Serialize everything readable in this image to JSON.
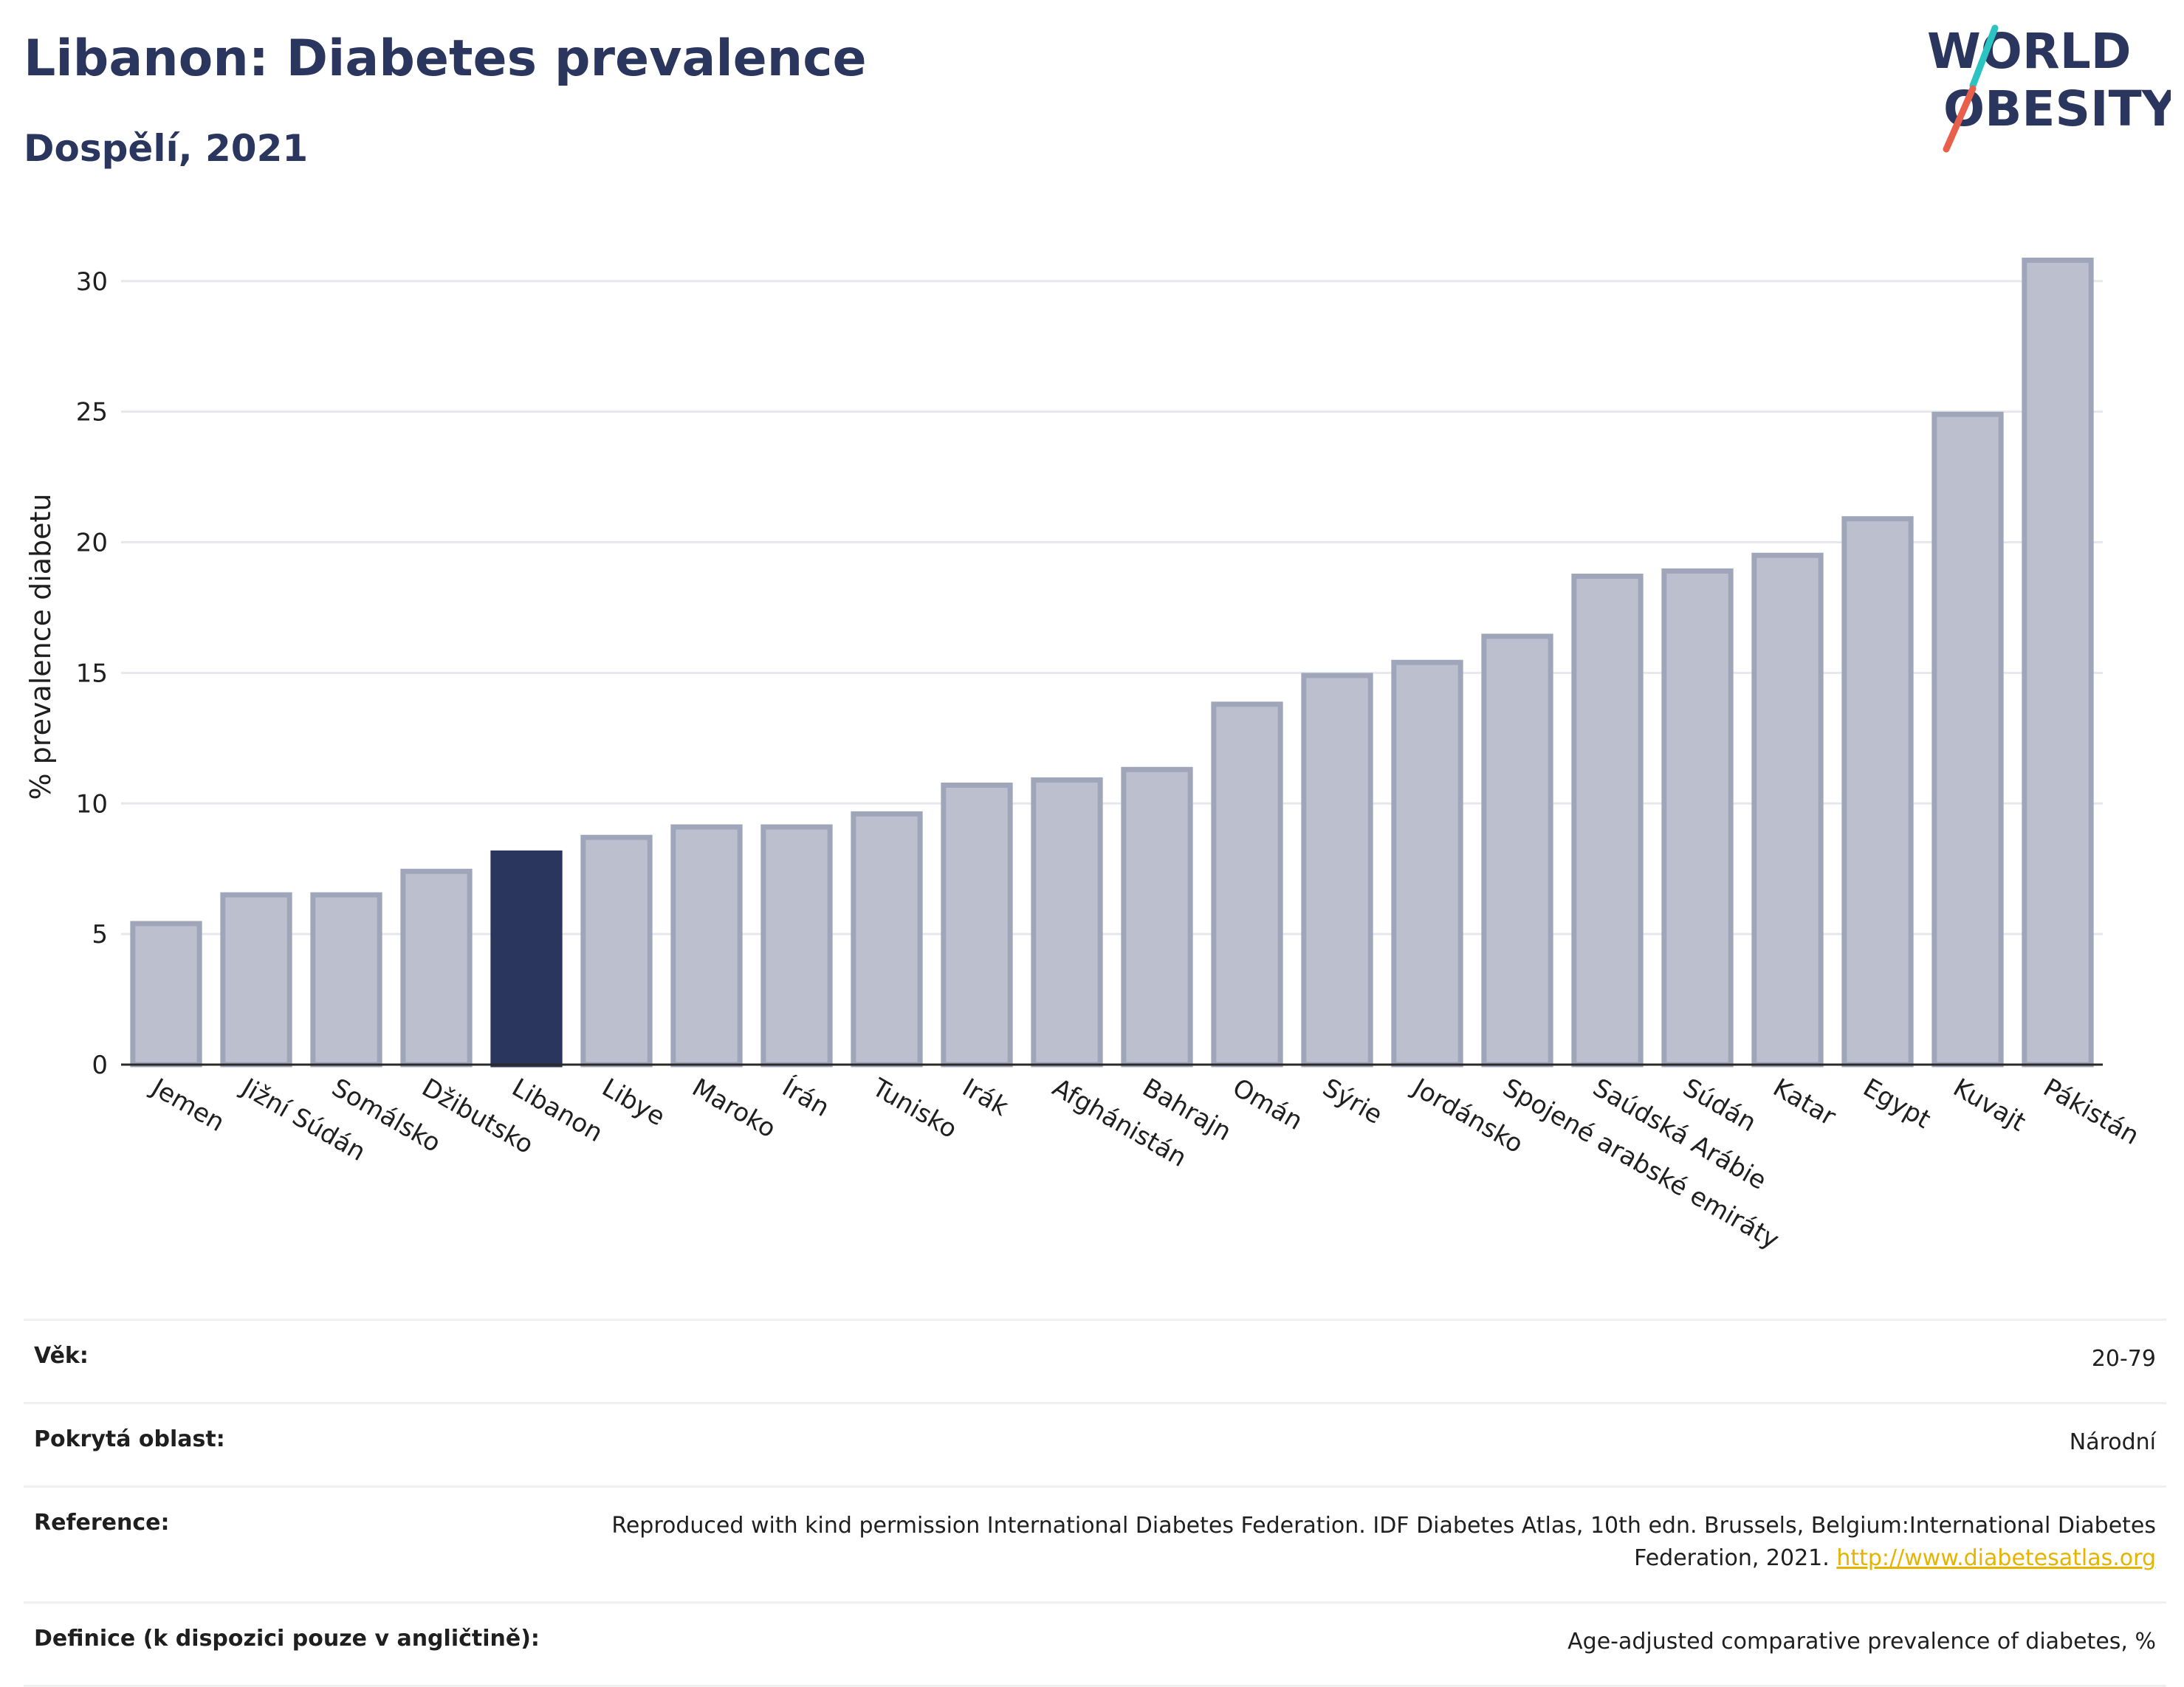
{
  "header": {
    "title": "Libanon: Diabetes prevalence",
    "subtitle": "Dospělí, 2021"
  },
  "logo": {
    "line1": "WORLD",
    "line2": "OBESITY",
    "slash_colors": [
      "#2cc3c3",
      "#e8604c"
    ]
  },
  "colors": {
    "bar_default": "#bcc0ce",
    "bar_border": "#a0a6ba",
    "bar_highlight": "#2b365f",
    "text_primary": "#2b365f",
    "link": "#e6b400"
  },
  "chart_data": {
    "type": "bar",
    "ylabel": "% prevalence diabetu",
    "ylim": [
      0,
      32
    ],
    "yticks": [
      0,
      5,
      10,
      15,
      20,
      25,
      30
    ],
    "grid": true,
    "highlight": "Libanon",
    "categories": [
      "Jemen",
      "Jižní Súdán",
      "Somálsko",
      "Džibutsko",
      "Libanon",
      "Libye",
      "Maroko",
      "Írán",
      "Tunisko",
      "Irák",
      "Afghánistán",
      "Bahrajn",
      "Omán",
      "Sýrie",
      "Jordánsko",
      "Spojené arabské emiráty",
      "Saúdská Arábie",
      "Súdán",
      "Katar",
      "Egypt",
      "Kuvajt",
      "Pákistán"
    ],
    "values": [
      5.4,
      6.5,
      6.5,
      7.4,
      8.1,
      8.7,
      9.1,
      9.1,
      9.6,
      10.7,
      10.9,
      11.3,
      13.8,
      14.9,
      15.4,
      16.4,
      18.7,
      18.9,
      19.5,
      20.9,
      24.9,
      30.8
    ]
  },
  "info": {
    "rows": [
      {
        "key": "Věk:",
        "value": "20-79"
      },
      {
        "key": "Pokrytá oblast:",
        "value": "Národní"
      },
      {
        "key": "Reference:",
        "value": "Reproduced with kind permission International Diabetes Federation.  IDF Diabetes Atlas, 10th edn. Brussels, Belgium:International Diabetes Federation, 2021.",
        "link": "http://www.diabetesatlas.org"
      },
      {
        "key": "Definice (k dispozici pouze v angličtině):",
        "value": "Age-adjusted comparative prevalence of diabetes, %"
      }
    ]
  }
}
